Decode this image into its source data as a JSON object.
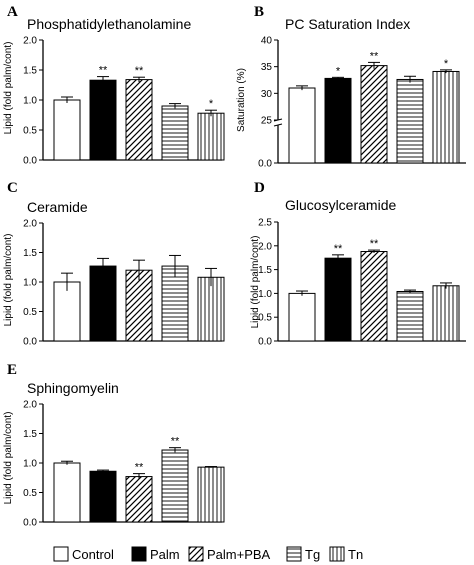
{
  "chart_data": [
    {
      "type": "bar",
      "panel": "A",
      "title": "Phosphatidylethanolamine",
      "ylabel": "Lipid (fold palm/cont)",
      "ylim": [
        0,
        2.0
      ],
      "yticks": [
        "0.0",
        "0.5",
        "1.0",
        "1.5",
        "2.0"
      ],
      "categories": [
        "Control",
        "Palm",
        "Palm+PBA",
        "Tg",
        "Tn"
      ],
      "values": [
        1.0,
        1.33,
        1.34,
        0.9,
        0.78
      ],
      "errors": [
        0.05,
        0.06,
        0.04,
        0.04,
        0.05
      ],
      "significance": [
        "",
        "**",
        "**",
        "",
        "*"
      ]
    },
    {
      "type": "bar",
      "panel": "B",
      "title": "PC Saturation Index",
      "ylabel": "Saturation (%)",
      "axis_break": [
        0,
        25
      ],
      "ylim": [
        25,
        40
      ],
      "yticks": [
        "0.0",
        "25",
        "30",
        "35",
        "40"
      ],
      "categories": [
        "Control",
        "Palm",
        "Palm+PBA",
        "Tg",
        "Tn"
      ],
      "values": [
        31.0,
        32.8,
        35.2,
        32.6,
        34.1
      ],
      "errors": [
        0.4,
        0.2,
        0.6,
        0.6,
        0.3
      ],
      "significance": [
        "",
        "*",
        "**",
        "",
        "*"
      ]
    },
    {
      "type": "bar",
      "panel": "C",
      "title": "Ceramide",
      "ylabel": "Lipid (fold palm/cont)",
      "ylim": [
        0,
        2.0
      ],
      "yticks": [
        "0.0",
        "0.5",
        "1.0",
        "1.5",
        "2.0"
      ],
      "categories": [
        "Control",
        "Palm",
        "Palm+PBA",
        "Tg",
        "Tn"
      ],
      "values": [
        1.0,
        1.27,
        1.2,
        1.27,
        1.08
      ],
      "errors": [
        0.15,
        0.13,
        0.17,
        0.18,
        0.15
      ],
      "significance": [
        "",
        "",
        "",
        "",
        ""
      ]
    },
    {
      "type": "bar",
      "panel": "D",
      "title": "Glucosylceramide",
      "ylabel": "Lipid (fold palm/cont)",
      "ylim": [
        0,
        2.5
      ],
      "yticks": [
        "0.0",
        "0.5",
        "1.0",
        "1.5",
        "2.0",
        "2.5"
      ],
      "categories": [
        "Control",
        "Palm",
        "Palm+PBA",
        "Tg",
        "Tn"
      ],
      "values": [
        1.0,
        1.74,
        1.88,
        1.04,
        1.16
      ],
      "errors": [
        0.05,
        0.07,
        0.03,
        0.03,
        0.06
      ],
      "significance": [
        "",
        "**",
        "**",
        "",
        ""
      ]
    },
    {
      "type": "bar",
      "panel": "E",
      "title": "Sphingomyelin",
      "ylabel": "Lipid (fold palm/cont)",
      "ylim": [
        0,
        2.0
      ],
      "yticks": [
        "0.0",
        "0.5",
        "1.0",
        "1.5",
        "2.0"
      ],
      "categories": [
        "Control",
        "Palm",
        "Palm+PBA",
        "Tg",
        "Tn"
      ],
      "values": [
        1.0,
        0.86,
        0.77,
        1.22,
        0.93
      ],
      "errors": [
        0.03,
        0.02,
        0.05,
        0.04,
        0.01
      ],
      "significance": [
        "",
        "",
        "**",
        "**",
        ""
      ]
    }
  ],
  "legend": {
    "position": "bottom",
    "items": [
      {
        "label": "Control",
        "pattern": "white"
      },
      {
        "label": "Palm",
        "pattern": "black"
      },
      {
        "label": "Palm+PBA",
        "pattern": "diagonal-hatch"
      },
      {
        "label": "Tg",
        "pattern": "horizontal-lines"
      },
      {
        "label": "Tn",
        "pattern": "vertical-lines"
      }
    ]
  },
  "colors": {
    "ink": "#000000",
    "background": "#ffffff"
  }
}
